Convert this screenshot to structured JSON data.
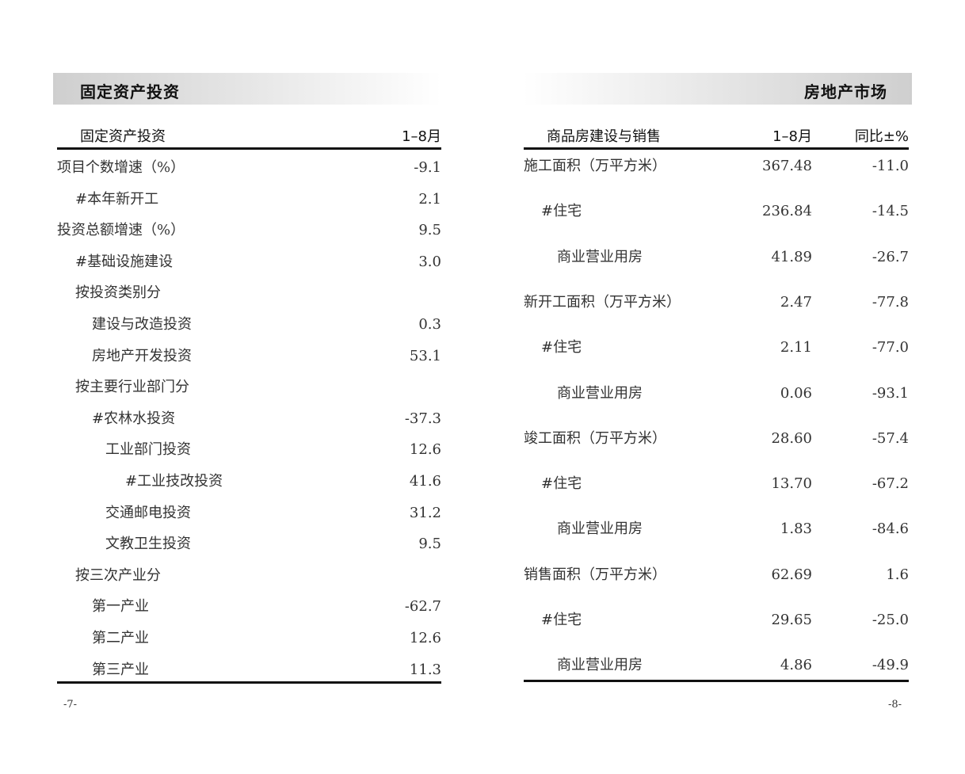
{
  "left_page": {
    "section_title": "固定资产投资",
    "table_header": {
      "label": "固定资产投资",
      "col1": "1–8月"
    },
    "rows": [
      {
        "label": "项目个数增速（%）",
        "level": 0,
        "value": "-9.1"
      },
      {
        "label": "#本年新开工",
        "level": 1,
        "value": "2.1"
      },
      {
        "label": "投资总额增速（%）",
        "level": 0,
        "value": "9.5"
      },
      {
        "label": "#基础设施建设",
        "level": 1,
        "value": "3.0"
      },
      {
        "label": "按投资类别分",
        "level": 1,
        "value": ""
      },
      {
        "label": "建设与改造投资",
        "level": 2,
        "value": "0.3"
      },
      {
        "label": "房地产开发投资",
        "level": 2,
        "value": "53.1"
      },
      {
        "label": "按主要行业部门分",
        "level": 1,
        "value": ""
      },
      {
        "label": "#农林水投资",
        "level": 2,
        "value": "-37.3"
      },
      {
        "label": "工业部门投资",
        "level": 3,
        "value": "12.6"
      },
      {
        "label": "#工业技改投资",
        "level": 4,
        "value": "41.6"
      },
      {
        "label": "交通邮电投资",
        "level": 3,
        "value": "31.2"
      },
      {
        "label": "文教卫生投资",
        "level": 3,
        "value": "9.5"
      },
      {
        "label": "按三次产业分",
        "level": 1,
        "value": ""
      },
      {
        "label": "第一产业",
        "level": 2,
        "value": "-62.7"
      },
      {
        "label": "第二产业",
        "level": 2,
        "value": "12.6"
      },
      {
        "label": "第三产业",
        "level": 2,
        "value": "11.3"
      }
    ],
    "page_number": "-7-"
  },
  "right_page": {
    "section_title": "房地产市场",
    "table_header": {
      "label": "商品房建设与销售",
      "col1": "1–8月",
      "col2": "同比±%"
    },
    "rows": [
      {
        "label": "施工面积（万平方米）",
        "level": 0,
        "value": "367.48",
        "yoy": "-11.0"
      },
      {
        "label": "#住宅",
        "level": 1,
        "value": "236.84",
        "yoy": "-14.5"
      },
      {
        "label": "商业营业用房",
        "level": 2,
        "value": "41.89",
        "yoy": "-26.7"
      },
      {
        "label": "新开工面积（万平方米）",
        "level": 0,
        "value": "2.47",
        "yoy": "-77.8"
      },
      {
        "label": "#住宅",
        "level": 1,
        "value": "2.11",
        "yoy": "-77.0"
      },
      {
        "label": "商业营业用房",
        "level": 2,
        "value": "0.06",
        "yoy": "-93.1"
      },
      {
        "label": "竣工面积（万平方米）",
        "level": 0,
        "value": "28.60",
        "yoy": "-57.4"
      },
      {
        "label": "#住宅",
        "level": 1,
        "value": "13.70",
        "yoy": "-67.2"
      },
      {
        "label": "商业营业用房",
        "level": 2,
        "value": "1.83",
        "yoy": "-84.6"
      },
      {
        "label": "销售面积（万平方米）",
        "level": 0,
        "value": "62.69",
        "yoy": "1.6"
      },
      {
        "label": "#住宅",
        "level": 1,
        "value": "29.65",
        "yoy": "-25.0"
      },
      {
        "label": "商业营业用房",
        "level": 2,
        "value": "4.86",
        "yoy": "-49.9"
      }
    ],
    "page_number": "-8-"
  }
}
